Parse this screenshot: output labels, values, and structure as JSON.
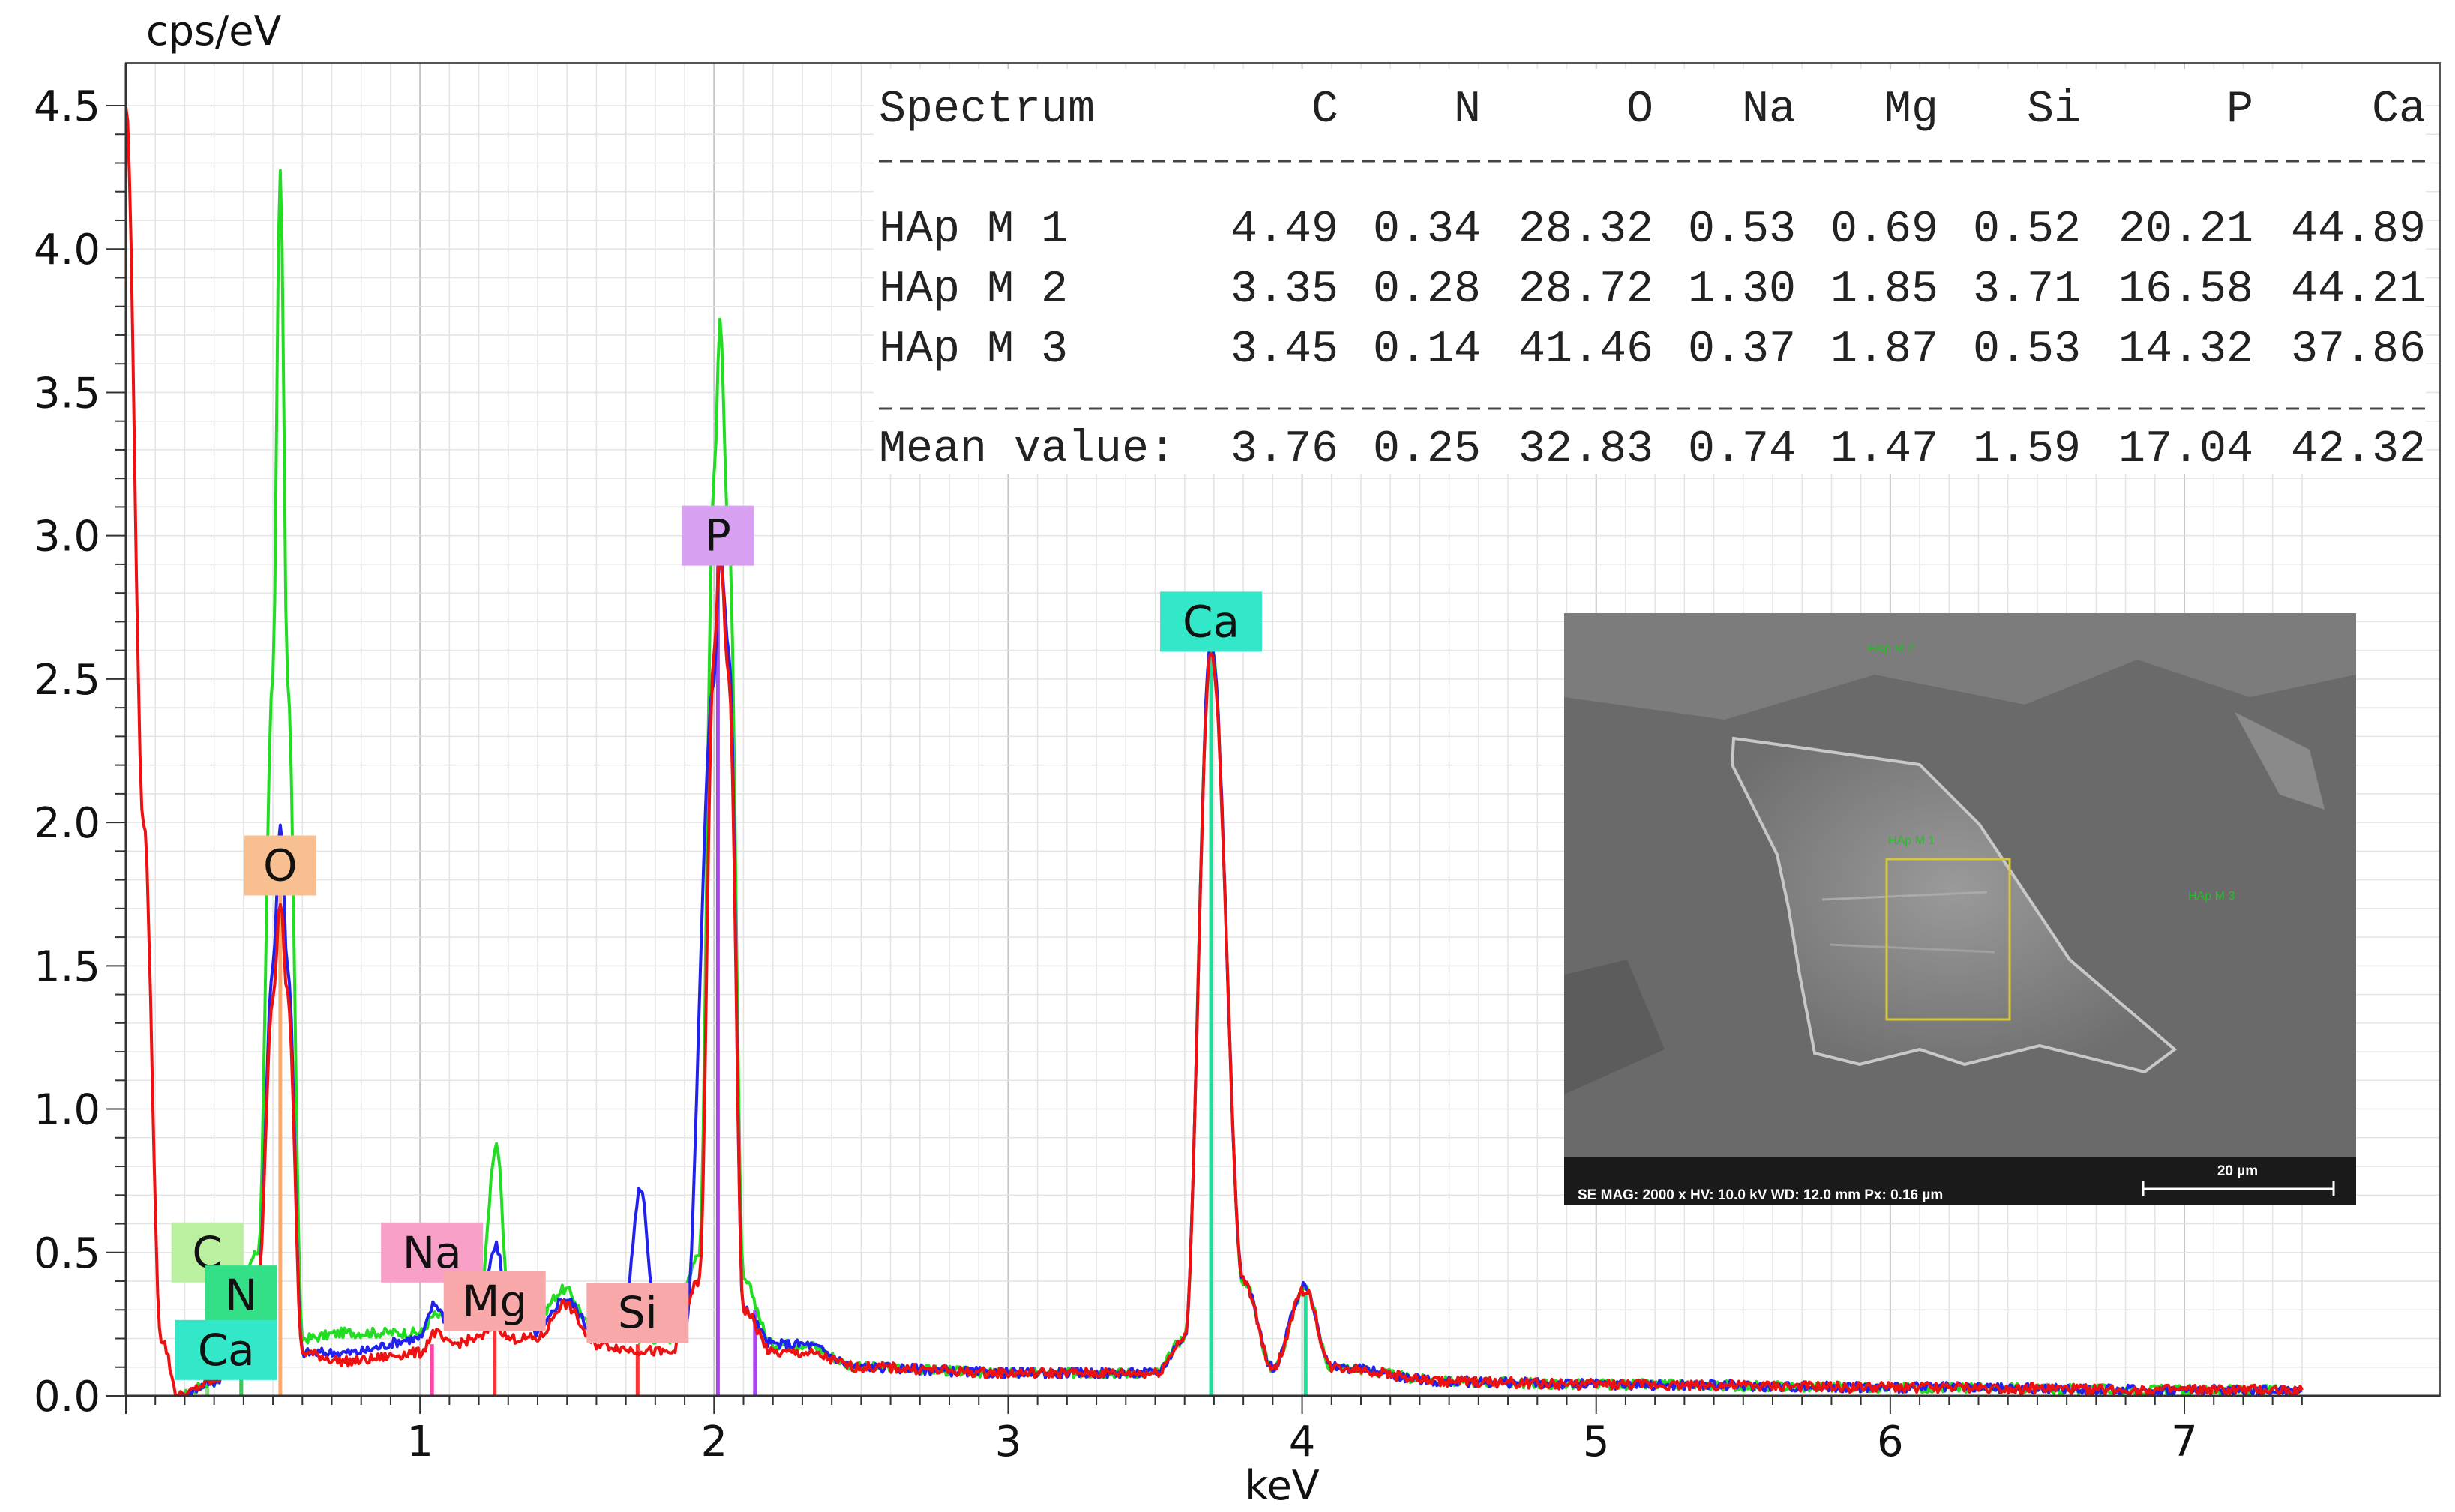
{
  "chart_data": {
    "type": "line",
    "xlabel": "keV",
    "ylabel": "cps/eV",
    "xlim": [
      0,
      7.4
    ],
    "ylim": [
      0,
      4.5
    ],
    "x_ticks": [
      "1",
      "2",
      "3",
      "4",
      "5",
      "6",
      "7"
    ],
    "y_ticks": [
      "0.0",
      "0.5",
      "1.0",
      "1.5",
      "2.0",
      "2.5",
      "3.0",
      "3.5",
      "4.0",
      "4.5"
    ],
    "grid": true,
    "series": [
      {
        "color": "#22dd22",
        "x": [
          0.18,
          0.3,
          0.45,
          0.5,
          0.525,
          0.55,
          0.6,
          0.75,
          1.0,
          1.05,
          1.1,
          1.2,
          1.26,
          1.3,
          1.4,
          1.49,
          1.6,
          1.74,
          1.85,
          1.95,
          2.0,
          2.02,
          2.05,
          2.1,
          2.2,
          2.3,
          2.5,
          3.0,
          3.5,
          3.6,
          3.69,
          3.8,
          3.9,
          4.01,
          4.1,
          4.5,
          5.0,
          6.0,
          7.0,
          7.4
        ],
        "y": [
          0.0,
          0.05,
          0.5,
          2.5,
          4.27,
          2.5,
          0.2,
          0.22,
          0.22,
          0.28,
          0.26,
          0.3,
          0.88,
          0.35,
          0.28,
          0.37,
          0.22,
          0.2,
          0.2,
          0.5,
          3.2,
          3.74,
          3.0,
          0.4,
          0.18,
          0.18,
          0.1,
          0.08,
          0.08,
          0.2,
          2.63,
          0.4,
          0.1,
          0.37,
          0.1,
          0.05,
          0.04,
          0.03,
          0.02,
          0.02
        ]
      },
      {
        "color": "#2222ee",
        "x": [
          0.18,
          0.3,
          0.45,
          0.5,
          0.525,
          0.55,
          0.6,
          0.75,
          1.0,
          1.05,
          1.1,
          1.2,
          1.26,
          1.3,
          1.4,
          1.49,
          1.6,
          1.7,
          1.75,
          1.8,
          1.9,
          2.0,
          2.02,
          2.05,
          2.1,
          2.2,
          2.3,
          2.5,
          3.0,
          3.5,
          3.6,
          3.69,
          3.8,
          3.9,
          4.01,
          4.1,
          4.5,
          5.0,
          6.0,
          7.0,
          7.4
        ],
        "y": [
          0.0,
          0.05,
          0.4,
          1.5,
          2.0,
          1.5,
          0.15,
          0.15,
          0.2,
          0.32,
          0.25,
          0.3,
          0.52,
          0.28,
          0.22,
          0.34,
          0.22,
          0.35,
          0.73,
          0.3,
          0.22,
          2.5,
          2.95,
          2.6,
          0.3,
          0.18,
          0.18,
          0.1,
          0.08,
          0.08,
          0.2,
          2.63,
          0.4,
          0.1,
          0.38,
          0.1,
          0.05,
          0.04,
          0.03,
          0.02,
          0.02
        ]
      },
      {
        "color": "#ee1111",
        "x": [
          0.0,
          0.06,
          0.12,
          0.18,
          0.3,
          0.45,
          0.5,
          0.525,
          0.55,
          0.6,
          0.75,
          1.0,
          1.05,
          1.1,
          1.2,
          1.26,
          1.3,
          1.4,
          1.49,
          1.6,
          1.74,
          1.85,
          1.95,
          2.0,
          2.02,
          2.05,
          2.1,
          2.2,
          2.3,
          2.5,
          3.0,
          3.5,
          3.6,
          3.69,
          3.8,
          3.9,
          4.01,
          4.1,
          4.5,
          5.0,
          6.0,
          7.0,
          7.4
        ],
        "y": [
          4.5,
          2.0,
          0.2,
          0.0,
          0.05,
          0.4,
          1.4,
          1.72,
          1.4,
          0.15,
          0.12,
          0.15,
          0.22,
          0.18,
          0.2,
          0.25,
          0.2,
          0.2,
          0.32,
          0.18,
          0.16,
          0.15,
          0.4,
          2.6,
          2.93,
          2.5,
          0.3,
          0.15,
          0.15,
          0.1,
          0.08,
          0.08,
          0.2,
          2.6,
          0.4,
          0.1,
          0.37,
          0.1,
          0.05,
          0.04,
          0.03,
          0.02,
          0.02
        ]
      }
    ],
    "element_lines": [
      {
        "x": 0.277,
        "h": 0.2,
        "color": "#88dd88"
      },
      {
        "x": 0.392,
        "h": 0.2,
        "color": "#33cc55"
      },
      {
        "x": 0.525,
        "h": 1.85,
        "color": "#ffaa66"
      },
      {
        "x": 1.041,
        "h": 0.18,
        "color": "#ff44aa"
      },
      {
        "x": 1.254,
        "h": 0.25,
        "color": "#ff3333"
      },
      {
        "x": 1.74,
        "h": 0.18,
        "color": "#ff3333"
      },
      {
        "x": 2.013,
        "h": 3.0,
        "color": "#aa44ee"
      },
      {
        "x": 2.139,
        "h": 0.3,
        "color": "#aa44ee"
      },
      {
        "x": 3.69,
        "h": 2.6,
        "color": "#22dd99"
      },
      {
        "x": 4.012,
        "h": 0.35,
        "color": "#22dd99"
      }
    ],
    "element_labels": [
      {
        "text": "C",
        "x": 0.277,
        "y": 0.5,
        "color": "#bbf0a0"
      },
      {
        "text": "N",
        "x": 0.392,
        "y": 0.35,
        "color": "#33e088"
      },
      {
        "text": "Ca",
        "x": 0.341,
        "y": 0.16,
        "color": "#33e8c8"
      },
      {
        "text": "O",
        "x": 0.525,
        "y": 1.85,
        "color": "#f8c090"
      },
      {
        "text": "Na",
        "x": 1.041,
        "y": 0.5,
        "color": "#f8a0c8"
      },
      {
        "text": "Mg",
        "x": 1.254,
        "y": 0.33,
        "color": "#f8a8a8"
      },
      {
        "text": "Si",
        "x": 1.74,
        "y": 0.29,
        "color": "#f8a8a8"
      },
      {
        "text": "P",
        "x": 2.013,
        "y": 3.0,
        "color": "#d8a0f0"
      },
      {
        "text": "Ca",
        "x": 3.69,
        "y": 2.7,
        "color": "#33e8c8"
      }
    ]
  },
  "table": {
    "headers": [
      "Spectrum",
      "C",
      "N",
      "O",
      "Na",
      "Mg",
      "Si",
      "P",
      "Ca"
    ],
    "rows": [
      [
        "HAp M 1",
        "4.49",
        "0.34",
        "28.32",
        "0.53",
        "0.69",
        "0.52",
        "20.21",
        "44.89"
      ],
      [
        "HAp M 2",
        "3.35",
        "0.28",
        "28.72",
        "1.30",
        "1.85",
        "3.71",
        "16.58",
        "44.21"
      ],
      [
        "HAp M 3",
        "3.45",
        "0.14",
        "41.46",
        "0.37",
        "1.87",
        "0.53",
        "14.32",
        "37.86"
      ]
    ],
    "mean_row": [
      "Mean value:",
      "3.76",
      "0.25",
      "32.83",
      "0.74",
      "1.47",
      "1.59",
      "17.04",
      "42.32"
    ]
  },
  "sem_image": {
    "info": "SE MAG: 2000 x HV: 10.0 kV WD: 12.0 mm Px: 0.16 µm",
    "scale": "20 µm",
    "labels": [
      "HAp M 2",
      "HAp M 1",
      "HAp M 3"
    ]
  }
}
